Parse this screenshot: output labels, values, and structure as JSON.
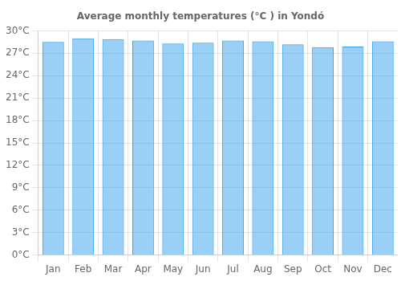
{
  "chart_data": {
    "type": "bar",
    "title": "Average monthly temperatures (°C ) in Yondó",
    "categories": [
      "Jan",
      "Feb",
      "Mar",
      "Apr",
      "May",
      "Jun",
      "Jul",
      "Aug",
      "Sep",
      "Oct",
      "Nov",
      "Dec"
    ],
    "values": [
      28.5,
      29.0,
      28.9,
      28.7,
      28.3,
      28.4,
      28.7,
      28.6,
      28.2,
      27.8,
      27.9,
      28.6
    ],
    "ylim": [
      0,
      30
    ],
    "yticks": [
      {
        "value": 0,
        "label": "0°C"
      },
      {
        "value": 3,
        "label": "3°C"
      },
      {
        "value": 6,
        "label": "6°C"
      },
      {
        "value": 9,
        "label": "9°C"
      },
      {
        "value": 12,
        "label": "12°C"
      },
      {
        "value": 15,
        "label": "15°C"
      },
      {
        "value": 18,
        "label": "18°C"
      },
      {
        "value": 21,
        "label": "21°C"
      },
      {
        "value": 24,
        "label": "24°C"
      },
      {
        "value": 27,
        "label": "27°C"
      },
      {
        "value": 30,
        "label": "30°C"
      }
    ],
    "grid": true
  }
}
